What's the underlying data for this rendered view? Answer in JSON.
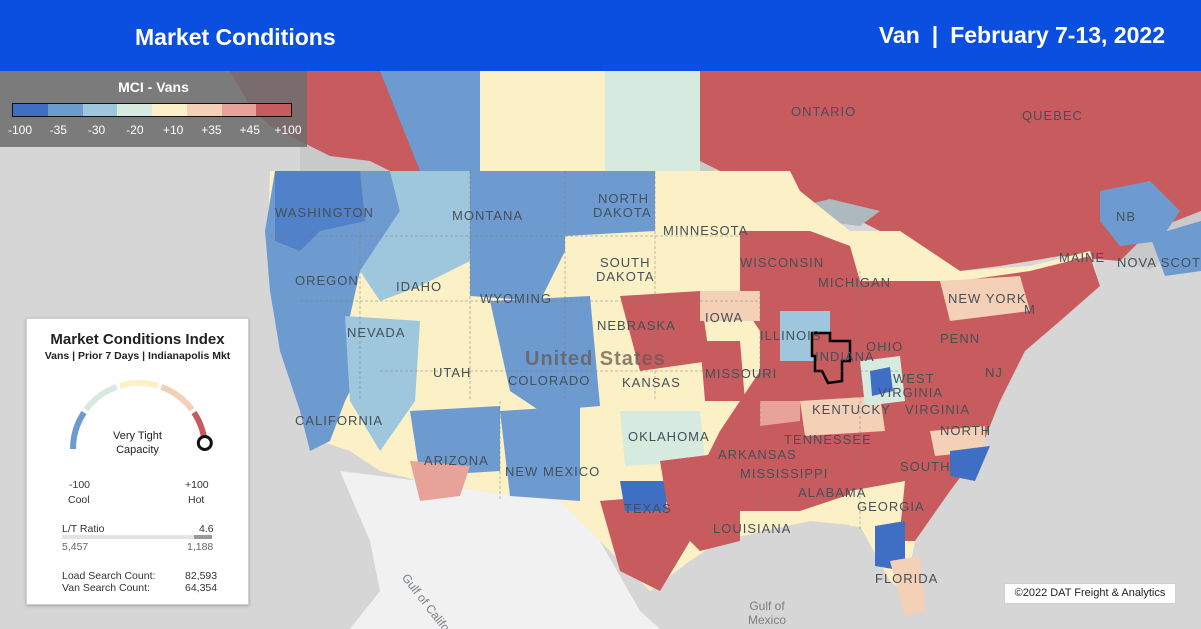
{
  "header": {
    "title": "Market Conditions",
    "equipment": "Van",
    "separator": "|",
    "date_range": "February 7-13, 2022"
  },
  "legend": {
    "title": "MCI - Vans",
    "colors": [
      "#3f6fc4",
      "#6d9bd0",
      "#9ec6dc",
      "#d7eae0",
      "#fbf0c6",
      "#f3d0b6",
      "#e7a39a",
      "#c85b5d"
    ],
    "ticks": [
      "-100",
      "-35",
      "-30",
      "-20",
      "+10",
      "+35",
      "+45",
      "+100"
    ]
  },
  "map": {
    "labels": {
      "washington": "WASHINGTON",
      "montana": "MONTANA",
      "north_dakota_1": "NORTH",
      "north_dakota_2": "DAKOTA",
      "minnesota": "MINNESOTA",
      "oregon": "OREGON",
      "idaho": "IDAHO",
      "wyoming": "WYOMING",
      "south_dakota_1": "SOUTH",
      "south_dakota_2": "DAKOTA",
      "wisconsin": "WISCONSIN",
      "michigan": "MICHIGAN",
      "nebraska": "NEBRASKA",
      "iowa": "IOWA",
      "illinois": "ILLINOIS",
      "indiana": "INDIANA",
      "ohio": "OHIO",
      "nevada": "NEVADA",
      "utah": "UTAH",
      "colorado": "COLORADO",
      "kansas": "KANSAS",
      "missouri": "MISSOURI",
      "kentucky": "KENTUCKY",
      "west_virginia_1": "WEST",
      "west_virginia_2": "VIRGINIA",
      "virginia": "VIRGINIA",
      "california": "CALIFORNIA",
      "arizona": "ARIZONA",
      "new_mexico": "NEW MEXICO",
      "oklahoma": "OKLAHOMA",
      "tennessee": "TENNESSEE",
      "north_carolina": "NORTH",
      "south_carolina": "SOUTH",
      "arkansas": "ARKANSAS",
      "mississippi": "MISSISSIPPI",
      "alabama": "ALABAMA",
      "georgia": "GEORGIA",
      "texas": "TEXAS",
      "louisiana": "LOUISIANA",
      "florida": "FLORIDA",
      "pennsylvania": "PENN",
      "new_york": "NEW YORK",
      "nj": "NJ",
      "ontario": "ONTARIO",
      "quebec": "QUEBEC",
      "maine": "MAINE",
      "nb": "NB",
      "nova_scotia": "NOVA SCOTIA",
      "m": "M",
      "united_states": "United States",
      "gulf_of_mexico_1": "Gulf of",
      "gulf_of_mexico_2": "Mexico",
      "gulf_of_california": "Gulf of California"
    }
  },
  "panel": {
    "title": "Market Conditions Index",
    "subtitle": "Vans | Prior 7 Days | Indianapolis Mkt",
    "gauge_text_1": "Very Tight",
    "gauge_text_2": "Capacity",
    "gauge_value": 95,
    "min_value": "-100",
    "min_label": "Cool",
    "max_value": "+100",
    "max_label": "Hot",
    "ratio_label": "L/T Ratio",
    "ratio_value": "4.6",
    "loads_value": "5,457",
    "trucks_value": "1,188",
    "load_search_label": "Load Search Count:",
    "load_search_value": "82,593",
    "van_search_label": "Van Search Count:",
    "van_search_value": "64,354"
  },
  "copyright": "©2022 DAT Freight & Analytics"
}
